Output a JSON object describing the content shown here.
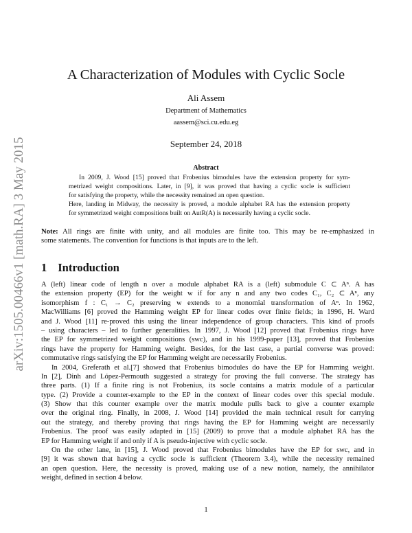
{
  "arxiv_stamp": "arXiv:1505.00466v1  [math.RA]  3 May 2015",
  "title": "A Characterization of Modules with Cyclic Socle",
  "author": "Ali Assem",
  "department": "Department of Mathematics",
  "email": "aassem@sci.cu.edu.eg",
  "date": "September 24, 2018",
  "abstract": {
    "heading": "Abstract",
    "paragraphs": [
      [
        "In 2009, J. Wood [15] proved that Frobenius bimodules have the extension property for sym-",
        "metrized weight compositions. Later, in [9], it was proved that having a cyclic socle is sufficient",
        "for satisfying the property, while the necessity remained an open question."
      ],
      [
        "Here, landing in Midway, the necessity is proved, a module alphabet RA has the extension property",
        "for symmetrized weight compositions built on AutR(A) is necessarily having a cyclic socle."
      ]
    ]
  },
  "note": {
    "label": "Note:",
    "lines": [
      " All rings are finite with unity, and all modules are finite too. This may be re-emphasized in",
      "some statements. The convention for functions is that inputs are to the left."
    ]
  },
  "section": {
    "number": "1",
    "title": "Introduction"
  },
  "intro_paragraphs": [
    [
      "A (left) linear code of length n over a module alphabet RA is a (left) submodule C ⊂ Aⁿ. A has",
      "the extension property (EP) for the weight w if for any n and any two codes C₁, C₂ ⊂ Aⁿ, any",
      "isomorphism f : C₁ → C₂ preserving w extends to a monomial transformation of Aⁿ. In 1962,",
      "MacWilliams [6] proved the Hamming weight EP for linear codes over finite fields; in 1996, H. Ward",
      "and J. Wood [11] re-proved this using the linear independence of group characters. This kind of proofs",
      "– using characters – led to further generalities. In 1997, J. Wood [12] proved that Frobenius rings have",
      "the EP for symmetrized weight compositions (swc), and in his 1999-paper [13], proved that Frobenius",
      "rings have the property for Hamming weight. Besides, for the last case, a partial converse was proved:",
      "commutative rings satisfying the EP for Hamming weight are necessarily Frobenius."
    ],
    [
      "In 2004, Greferath et al.[7] showed that Frobenius bimodules do have the EP for Hamming weight.",
      "In [2], Dinh and López-Permouth suggested a strategy for proving the full converse. The strategy has",
      "three parts. (1) If a finite ring is not Frobenius, its socle contains a matrix module of a particular",
      "type. (2) Provide a counter-example to the EP in the context of linear codes over this special module.",
      "(3) Show that this counter example over the matrix module pulls back to give a counter example",
      "over the original ring. Finally, in 2008, J. Wood [14] provided the main technical result for carrying",
      "out the strategy, and thereby proving that rings having the EP for Hamming weight are necessarily",
      "Frobenius. The proof was easily adapted in [15] (2009) to prove that a module alphabet RA has the",
      "EP for Hamming weight if and only if A is pseudo-injective with cyclic socle."
    ],
    [
      "On the other lane, in [15], J. Wood proved that Frobenius bimodules have the EP for swc, and in",
      "[9] it was shown that having a cyclic socle is sufficient (Theorem 3.4), while the necessity remained",
      "an open question. Here, the necessity is proved, making use of a new notion, namely, the annihilator",
      "weight, defined in section 4 below."
    ]
  ],
  "page_number": "1"
}
